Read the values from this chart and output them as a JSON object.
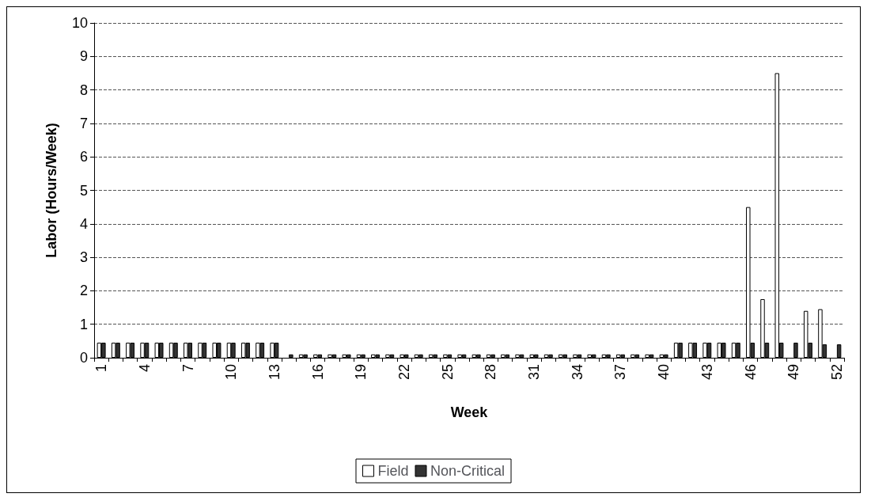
{
  "chart_data": {
    "type": "bar",
    "xlabel": "Week",
    "ylabel": "Labor (Hours/Week)",
    "categories": [
      "1",
      null,
      null,
      "4",
      null,
      null,
      "7",
      null,
      null,
      "10",
      null,
      null,
      "13",
      null,
      null,
      "16",
      null,
      null,
      "19",
      null,
      null,
      "22",
      null,
      null,
      "25",
      null,
      null,
      "28",
      null,
      null,
      "31",
      null,
      null,
      "34",
      null,
      null,
      "37",
      null,
      null,
      "40",
      null,
      null,
      "43",
      null,
      null,
      "46",
      null,
      null,
      "49",
      null,
      null,
      "52"
    ],
    "series": [
      {
        "name": "Field",
        "color": "#ffffff",
        "values": [
          0.45,
          0.45,
          0.45,
          0.45,
          0.45,
          0.45,
          0.45,
          0.45,
          0.45,
          0.45,
          0.45,
          0.45,
          0.45,
          null,
          0.1,
          0.1,
          0.1,
          0.1,
          0.1,
          0.1,
          0.1,
          0.1,
          0.1,
          0.1,
          0.1,
          0.1,
          0.1,
          0.1,
          0.1,
          0.1,
          0.1,
          0.1,
          0.1,
          0.1,
          0.1,
          0.1,
          0.1,
          0.1,
          0.1,
          0.1,
          0.45,
          0.45,
          0.45,
          0.45,
          0.45,
          4.5,
          1.75,
          8.5,
          null,
          1.4,
          1.45,
          null
        ]
      },
      {
        "name": "Non-Critical",
        "color": "#333333",
        "values": [
          0.45,
          0.45,
          0.45,
          0.45,
          0.45,
          0.45,
          0.45,
          0.45,
          0.45,
          0.45,
          0.45,
          0.45,
          0.45,
          0.1,
          0.1,
          0.1,
          0.1,
          0.1,
          0.1,
          0.1,
          0.1,
          0.1,
          0.1,
          0.1,
          0.1,
          0.1,
          0.1,
          0.1,
          0.1,
          0.1,
          0.1,
          0.1,
          0.1,
          0.1,
          0.1,
          0.1,
          0.1,
          0.1,
          0.1,
          0.1,
          0.45,
          0.45,
          0.45,
          0.45,
          0.45,
          0.45,
          0.45,
          0.45,
          0.45,
          0.45,
          0.4,
          0.4
        ]
      }
    ],
    "ylim": [
      0,
      10
    ],
    "yticks": [
      0,
      1,
      2,
      3,
      4,
      5,
      6,
      7,
      8,
      9,
      10
    ],
    "grid": "y",
    "legend": "bottom"
  }
}
